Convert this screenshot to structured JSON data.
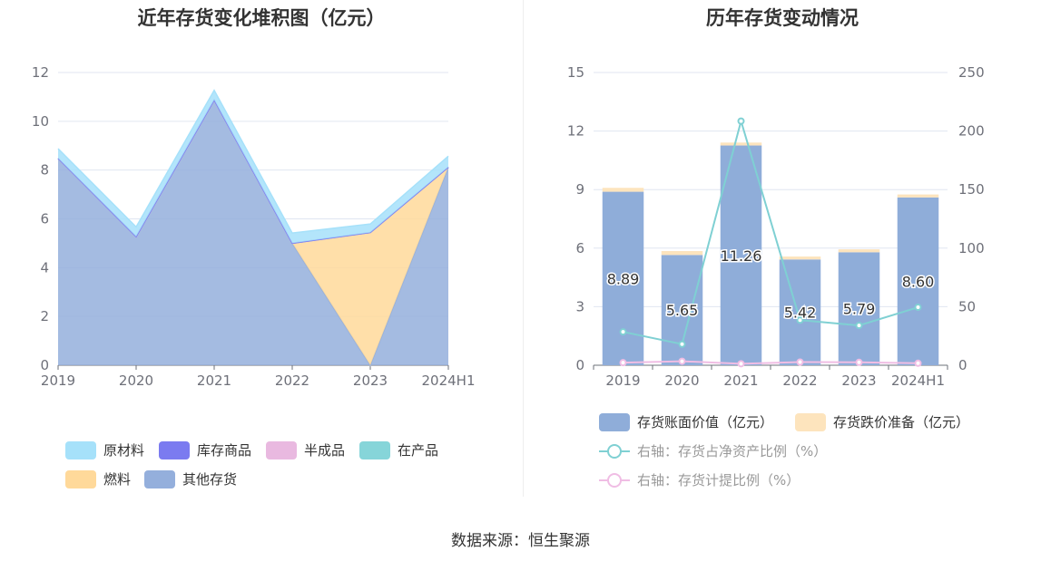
{
  "titles": {
    "left": "近年存货变化堆积图（亿元）",
    "right": "历年存货变动情况"
  },
  "source": "数据来源：恒生聚源",
  "colors": {
    "raw_materials": "#a6e1fa",
    "finished_goods": "#7b7bf0",
    "semi_finished": "#e9b9e0",
    "wip": "#86d5d9",
    "fuel": "#ffd99a",
    "other": "#94afdc",
    "book_value": "#8fadd9",
    "impairment": "#fde4bd",
    "line_net_assets": "#7fd0d3",
    "line_provision": "#f0bde4"
  },
  "chart_data": [
    {
      "type": "area",
      "stacked": true,
      "categories": [
        "2019",
        "2020",
        "2021",
        "2022",
        "2023",
        "2024H1"
      ],
      "ylim": [
        0,
        12
      ],
      "yticks": [
        0,
        2,
        4,
        6,
        8,
        10,
        12
      ],
      "grid": true,
      "legend_position": "bottom",
      "series": [
        {
          "name": "其他存货",
          "key": "other",
          "values": [
            8.48,
            5.27,
            10.87,
            5.0,
            0.0,
            8.12
          ]
        },
        {
          "name": "燃料",
          "key": "fuel",
          "values": [
            0.0,
            0.0,
            0.0,
            0.0,
            5.44,
            0.0
          ]
        },
        {
          "name": "在产品",
          "key": "wip",
          "values": [
            0.0,
            0.0,
            0.0,
            0.0,
            0.0,
            0.0
          ]
        },
        {
          "name": "半成品",
          "key": "semi_finished",
          "values": [
            0.0,
            0.0,
            0.0,
            0.0,
            0.0,
            0.0
          ]
        },
        {
          "name": "库存商品",
          "key": "finished_goods",
          "values": [
            0.0,
            0.0,
            0.0,
            0.0,
            0.0,
            0.0
          ]
        },
        {
          "name": "原材料",
          "key": "raw_materials",
          "values": [
            0.4,
            0.4,
            0.4,
            0.42,
            0.35,
            0.45
          ]
        }
      ],
      "legend_order": [
        "raw_materials",
        "finished_goods",
        "semi_finished",
        "wip",
        "fuel",
        "other"
      ]
    },
    {
      "type": "bar",
      "stacked": true,
      "categories": [
        "2019",
        "2020",
        "2021",
        "2022",
        "2023",
        "2024H1"
      ],
      "ylim_left": [
        0,
        15
      ],
      "yticks_left": [
        0,
        3,
        6,
        9,
        12,
        15
      ],
      "ylim_right": [
        0,
        250
      ],
      "yticks_right": [
        0,
        50,
        100,
        150,
        200,
        250
      ],
      "grid": true,
      "legend_position": "bottom",
      "bars": [
        {
          "name": "存货账面价值（亿元）",
          "key": "book_value",
          "values": [
            8.89,
            5.65,
            11.26,
            5.42,
            5.79,
            8.6
          ],
          "labels": [
            "8.89",
            "5.65",
            "11.26",
            "5.42",
            "5.79",
            "8.60"
          ]
        },
        {
          "name": "存货跌价准备（亿元）",
          "key": "impairment",
          "values": [
            0.2,
            0.2,
            0.15,
            0.15,
            0.15,
            0.15
          ]
        }
      ],
      "lines": [
        {
          "name": "右轴：存货占净资产比例（%）",
          "key": "line_net_assets",
          "axis": "right",
          "values": [
            28.5,
            18.0,
            208.5,
            38.5,
            34.0,
            49.5
          ]
        },
        {
          "name": "右轴：存货计提比例（%）",
          "key": "line_provision",
          "axis": "right",
          "values": [
            2.2,
            3.4,
            1.3,
            2.7,
            2.5,
            1.7
          ]
        }
      ]
    }
  ]
}
